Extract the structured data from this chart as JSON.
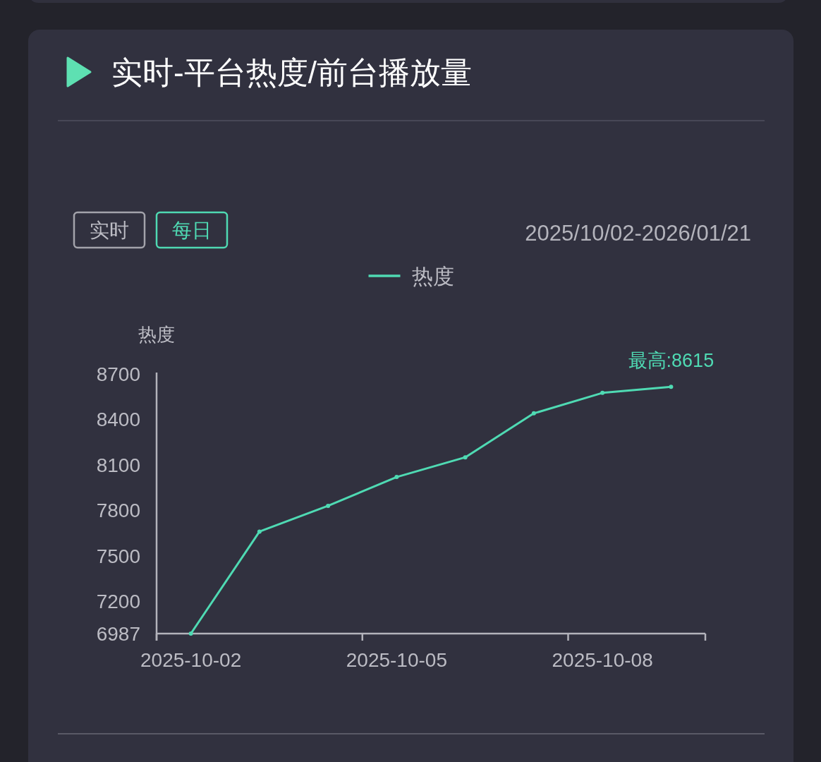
{
  "chart_data": {
    "type": "line",
    "title": "实时-平台热度/前台播放量",
    "ylabel": "热度",
    "categories": [
      "2025-10-02",
      null,
      null,
      "2025-10-05",
      null,
      null,
      "2025-10-08",
      null
    ],
    "series": [
      {
        "name": "热度",
        "color": "#4fdab3",
        "values": [
          6987,
          7660,
          7830,
          8020,
          8150,
          8440,
          8575,
          8615
        ]
      }
    ],
    "ylim": [
      6987,
      8700
    ],
    "yticks": [
      6987,
      7200,
      7500,
      7800,
      8100,
      8400,
      8700
    ],
    "legend": "top",
    "marker": "circle",
    "line_style": "solid",
    "annotations": [
      "实时",
      "每日",
      "2025/10/02-2026/01/21",
      {
        "text": "最高:8615",
        "y": 8615
      }
    ]
  }
}
